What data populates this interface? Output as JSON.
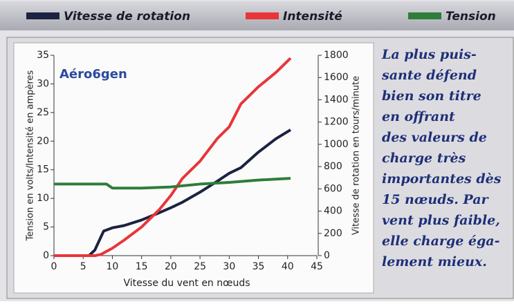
{
  "chart_data": {
    "type": "line",
    "annotation": "Aéro6gen",
    "xlabel": "Vitesse du vent en nœuds",
    "ylabel": "Tension en volts/Intensité en ampères",
    "y2label": "Vitesse de rotation en tours/minute",
    "xlim": [
      0,
      45
    ],
    "xticks": [
      0,
      5,
      10,
      15,
      20,
      25,
      30,
      35,
      40,
      45
    ],
    "ylim": [
      0,
      35
    ],
    "yticks": [
      0,
      5,
      10,
      15,
      20,
      25,
      30,
      35
    ],
    "y2lim": [
      0,
      1800
    ],
    "y2ticks": [
      0,
      200,
      400,
      600,
      800,
      1000,
      1200,
      1400,
      1600,
      1800
    ],
    "series": [
      {
        "name": "Vitesse de rotation",
        "color": "#1c2340",
        "axis": "y2",
        "x": [
          0,
          6,
          7,
          8.5,
          10,
          12,
          15,
          18,
          20,
          22,
          25,
          28,
          30,
          32,
          35,
          38,
          40.5
        ],
        "values": [
          0,
          0,
          50,
          220,
          250,
          270,
          320,
          385,
          430,
          480,
          570,
          670,
          740,
          790,
          930,
          1050,
          1130
        ]
      },
      {
        "name": "Intensité",
        "color": "#e8353a",
        "x": [
          0,
          7,
          8,
          10,
          12,
          15,
          18,
          20,
          22,
          25,
          28,
          30,
          32,
          35,
          38,
          40.5
        ],
        "values": [
          0,
          0,
          0.2,
          1.3,
          2.7,
          5,
          8,
          10.5,
          13.5,
          16.5,
          20.5,
          22.5,
          26.5,
          29.5,
          32,
          34.5
        ]
      },
      {
        "name": "Tension",
        "color": "#2e7d3a",
        "x": [
          0,
          9,
          10,
          12,
          15,
          20,
          25,
          30,
          35,
          40.5
        ],
        "values": [
          12.5,
          12.5,
          11.8,
          11.8,
          11.8,
          12,
          12.5,
          12.8,
          13.2,
          13.5
        ]
      }
    ]
  },
  "caption": [
    "La plus puis-",
    "sante défend",
    "bien son titre",
    "en offrant",
    "des valeurs de",
    "charge très",
    "importantes dès",
    "15 nœuds. Par",
    "vent plus faible,",
    "elle charge éga-",
    "lement mieux."
  ]
}
